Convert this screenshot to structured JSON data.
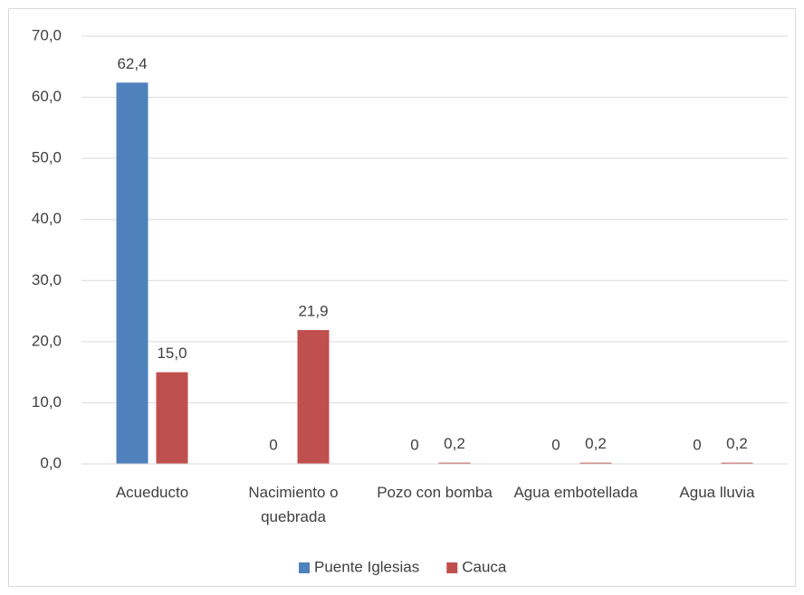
{
  "chart_data": {
    "type": "bar",
    "categories": [
      "Acueducto",
      "Nacimiento o quebrada",
      "Pozo con bomba",
      "Agua embotellada",
      "Agua lluvia"
    ],
    "series": [
      {
        "name": "Puente Iglesias",
        "color": "#4f81bd",
        "values": [
          62.4,
          0,
          0,
          0,
          0
        ],
        "value_labels": [
          "62,4",
          "0",
          "0",
          "0",
          "0"
        ]
      },
      {
        "name": "Cauca",
        "color": "#c0504d",
        "values": [
          15.0,
          21.9,
          0.2,
          0.2,
          0.2
        ],
        "value_labels": [
          "15,0",
          "21,9",
          "0,2",
          "0,2",
          "0,2"
        ]
      }
    ],
    "ylim": [
      0,
      70
    ],
    "yticks": [
      {
        "value": 0,
        "label": "0,0"
      },
      {
        "value": 10,
        "label": "10,0"
      },
      {
        "value": 20,
        "label": "20,0"
      },
      {
        "value": 30,
        "label": "30,0"
      },
      {
        "value": 40,
        "label": "40,0"
      },
      {
        "value": 50,
        "label": "50,0"
      },
      {
        "value": 60,
        "label": "60,0"
      },
      {
        "value": 70,
        "label": "70,0"
      }
    ],
    "grid": true,
    "legend": "bottom"
  }
}
